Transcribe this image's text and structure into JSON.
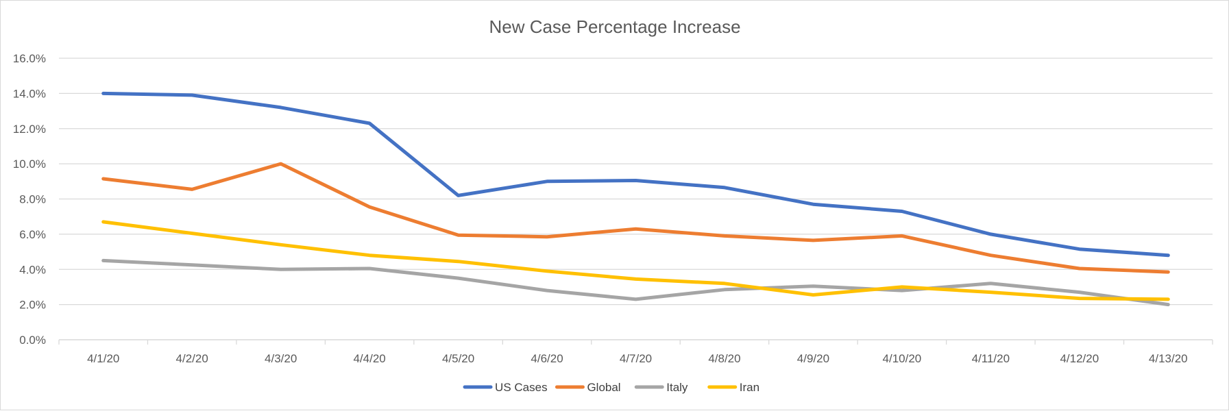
{
  "chart_data": {
    "type": "line",
    "title": "New Case Percentage Increase",
    "xlabel": "",
    "ylabel": "",
    "categories": [
      "4/1/20",
      "4/2/20",
      "4/3/20",
      "4/4/20",
      "4/5/20",
      "4/6/20",
      "4/7/20",
      "4/8/20",
      "4/9/20",
      "4/10/20",
      "4/11/20",
      "4/12/20",
      "4/13/20"
    ],
    "y_ticks": [
      "0.0%",
      "2.0%",
      "4.0%",
      "6.0%",
      "8.0%",
      "10.0%",
      "12.0%",
      "14.0%",
      "16.0%"
    ],
    "ylim": [
      0,
      16
    ],
    "grid": true,
    "legend_position": "bottom",
    "series": [
      {
        "name": "US Cases",
        "color": "#4472C4",
        "values": [
          14.0,
          13.9,
          13.2,
          12.3,
          8.2,
          9.0,
          9.05,
          8.65,
          7.7,
          7.3,
          6.0,
          5.15,
          4.8
        ]
      },
      {
        "name": "Global",
        "color": "#ED7D31",
        "values": [
          9.15,
          8.55,
          10.0,
          7.55,
          5.95,
          5.85,
          6.3,
          5.9,
          5.65,
          5.9,
          4.8,
          4.05,
          3.85
        ]
      },
      {
        "name": "Italy",
        "color": "#A5A5A5",
        "values": [
          4.5,
          4.25,
          4.0,
          4.05,
          3.5,
          2.8,
          2.3,
          2.85,
          3.05,
          2.8,
          3.2,
          2.7,
          2.0
        ]
      },
      {
        "name": "Iran",
        "color": "#FFC000",
        "values": [
          6.7,
          6.05,
          5.4,
          4.8,
          4.45,
          3.9,
          3.45,
          3.2,
          2.55,
          3.0,
          2.7,
          2.35,
          2.3
        ]
      }
    ]
  }
}
